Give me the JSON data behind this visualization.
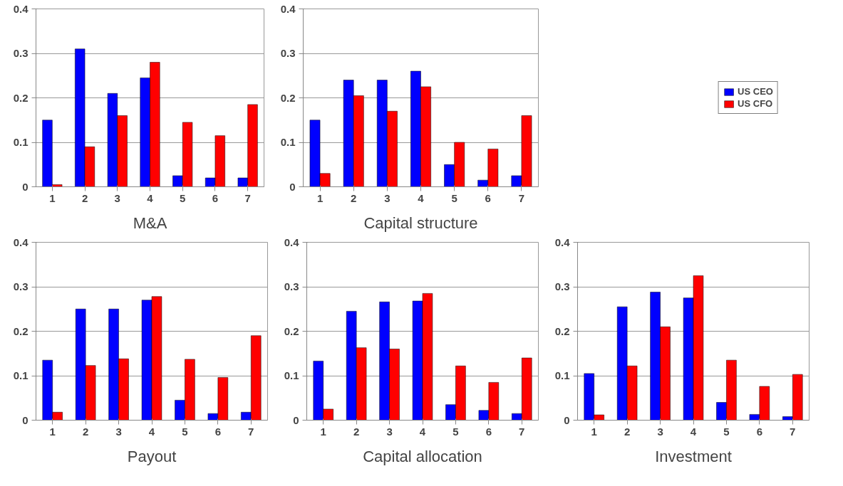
{
  "chart_data": [
    {
      "type": "bar",
      "xlabel": "M&A",
      "categories": [
        "1",
        "2",
        "3",
        "4",
        "5",
        "6",
        "7"
      ],
      "ylim": [
        0,
        0.4
      ],
      "yticks": [
        0,
        0.1,
        0.2,
        0.3,
        0.4
      ],
      "grid": "y",
      "legend": false,
      "series": [
        {
          "color": "#0000ff",
          "values": [
            0.15,
            0.31,
            0.21,
            0.245,
            0.025,
            0.02,
            0.02
          ]
        },
        {
          "color": "#ff0000",
          "values": [
            0.005,
            0.09,
            0.16,
            0.28,
            0.145,
            0.115,
            0.185
          ]
        }
      ]
    },
    {
      "type": "bar",
      "xlabel": "Capital structure",
      "categories": [
        "1",
        "2",
        "3",
        "4",
        "5",
        "6",
        "7"
      ],
      "ylim": [
        0,
        0.4
      ],
      "yticks": [
        0,
        0.1,
        0.2,
        0.3,
        0.4
      ],
      "grid": "y",
      "legend": "right",
      "series": [
        {
          "name": "US CEO",
          "color": "#0000ff",
          "values": [
            0.15,
            0.24,
            0.24,
            0.26,
            0.05,
            0.015,
            0.025
          ]
        },
        {
          "name": "US CFO",
          "color": "#ff0000",
          "values": [
            0.03,
            0.205,
            0.17,
            0.225,
            0.1,
            0.085,
            0.16
          ]
        }
      ]
    },
    {
      "type": "bar",
      "xlabel": "Payout",
      "categories": [
        "1",
        "2",
        "3",
        "4",
        "5",
        "6",
        "7"
      ],
      "ylim": [
        0,
        0.4
      ],
      "yticks": [
        0,
        0.1,
        0.2,
        0.3,
        0.4
      ],
      "grid": "y",
      "legend": false,
      "series": [
        {
          "color": "#0000ff",
          "values": [
            0.135,
            0.25,
            0.25,
            0.27,
            0.045,
            0.015,
            0.018
          ]
        },
        {
          "color": "#ff0000",
          "values": [
            0.018,
            0.123,
            0.138,
            0.278,
            0.137,
            0.096,
            0.19
          ]
        }
      ]
    },
    {
      "type": "bar",
      "xlabel": "Capital allocation",
      "categories": [
        "1",
        "2",
        "3",
        "4",
        "5",
        "6",
        "7"
      ],
      "ylim": [
        0,
        0.4
      ],
      "yticks": [
        0,
        0.1,
        0.2,
        0.3,
        0.4
      ],
      "grid": "y",
      "legend": false,
      "series": [
        {
          "color": "#0000ff",
          "values": [
            0.133,
            0.245,
            0.266,
            0.268,
            0.035,
            0.022,
            0.015
          ]
        },
        {
          "color": "#ff0000",
          "values": [
            0.025,
            0.163,
            0.16,
            0.285,
            0.122,
            0.085,
            0.14
          ]
        }
      ]
    },
    {
      "type": "bar",
      "xlabel": "Investment",
      "categories": [
        "1",
        "2",
        "3",
        "4",
        "5",
        "6",
        "7"
      ],
      "ylim": [
        0,
        0.4
      ],
      "yticks": [
        0,
        0.1,
        0.2,
        0.3,
        0.4
      ],
      "grid": "y",
      "legend": false,
      "series": [
        {
          "color": "#0000ff",
          "values": [
            0.105,
            0.255,
            0.288,
            0.275,
            0.04,
            0.013,
            0.008
          ]
        },
        {
          "color": "#ff0000",
          "values": [
            0.012,
            0.122,
            0.21,
            0.325,
            0.135,
            0.076,
            0.103
          ]
        }
      ]
    }
  ]
}
